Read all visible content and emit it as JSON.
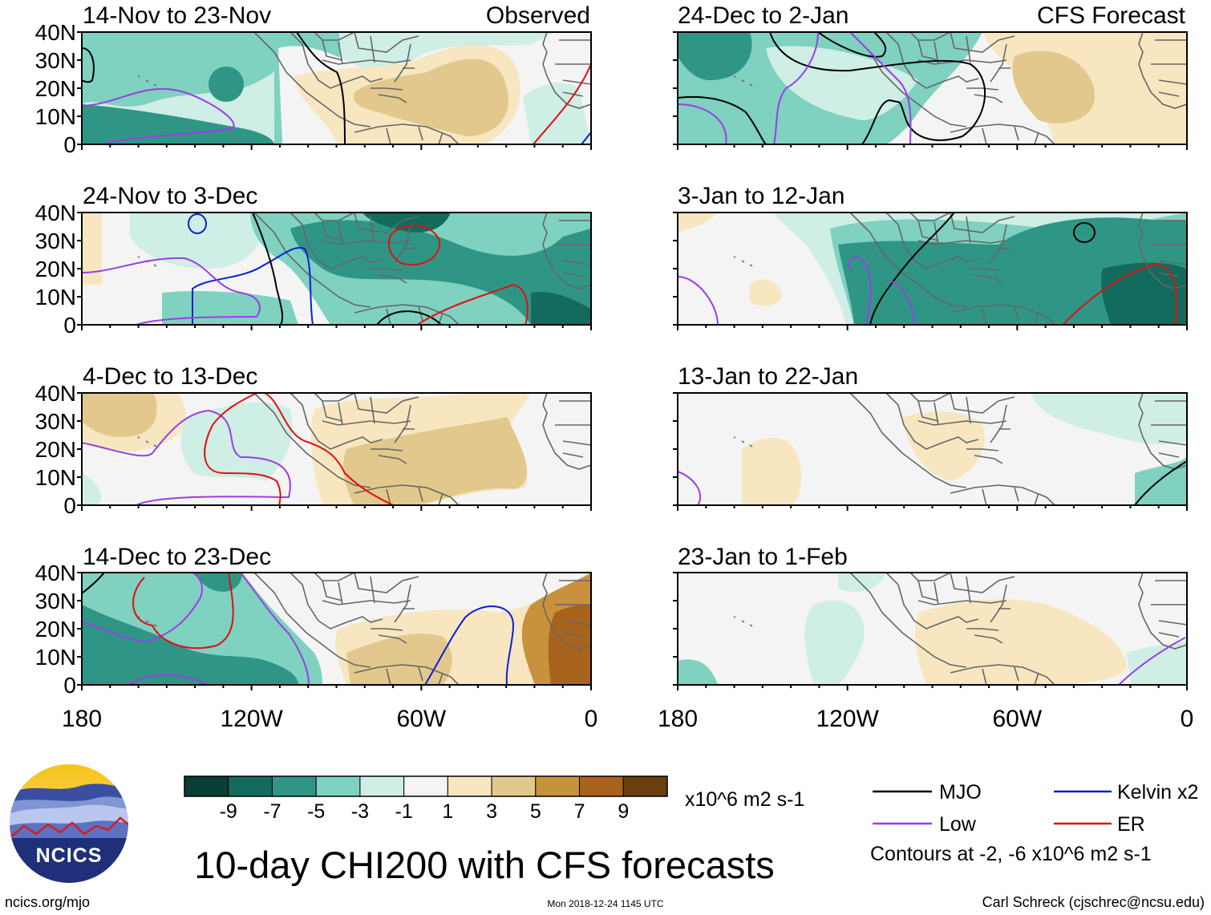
{
  "panels": {
    "left_header": "Observed",
    "right_header": "CFS Forecast",
    "observed": [
      {
        "title": "14-Nov to 23-Nov"
      },
      {
        "title": "24-Nov to 3-Dec"
      },
      {
        "title": "4-Dec to 13-Dec"
      },
      {
        "title": "14-Dec to 23-Dec"
      }
    ],
    "forecast": [
      {
        "title": "24-Dec to 2-Jan"
      },
      {
        "title": "3-Jan to 12-Jan"
      },
      {
        "title": "13-Jan to 22-Jan"
      },
      {
        "title": "23-Jan to 1-Feb"
      }
    ]
  },
  "axes": {
    "lat_labels": [
      "40N",
      "30N",
      "20N",
      "10N",
      "0"
    ],
    "lon_labels": [
      "180",
      "120W",
      "60W",
      "0"
    ]
  },
  "colorbar": {
    "ticks": [
      "-9",
      "-7",
      "-5",
      "-3",
      "-1",
      "1",
      "3",
      "5",
      "7",
      "9"
    ],
    "units": "x10^6 m2 s-1",
    "colors": [
      "#0a3d33",
      "#136b5e",
      "#2f9686",
      "#7fd1c0",
      "#cfeee5",
      "#f4f4f4",
      "#f7e6bf",
      "#e3c88d",
      "#c8913c",
      "#a8641c",
      "#6a3f10"
    ]
  },
  "legend": {
    "mjo": "MJO",
    "kelvin": "Kelvin x2",
    "low": "Low",
    "er": "ER",
    "contours_note": "Contours at -2, -6 x10^6 m2 s-1",
    "colors": {
      "mjo": "#000000",
      "kelvin": "#0a1fd6",
      "low": "#9a3ee6",
      "er": "#e01010"
    }
  },
  "title": "10-day CHI200 with CFS forecasts",
  "logo_text": "NCICS",
  "footer": {
    "url": "ncics.org/mjo",
    "timestamp": "Mon 2018-12-24 1145 UTC",
    "credit": "Carl Schreck (cjschrec@ncsu.edu)"
  }
}
